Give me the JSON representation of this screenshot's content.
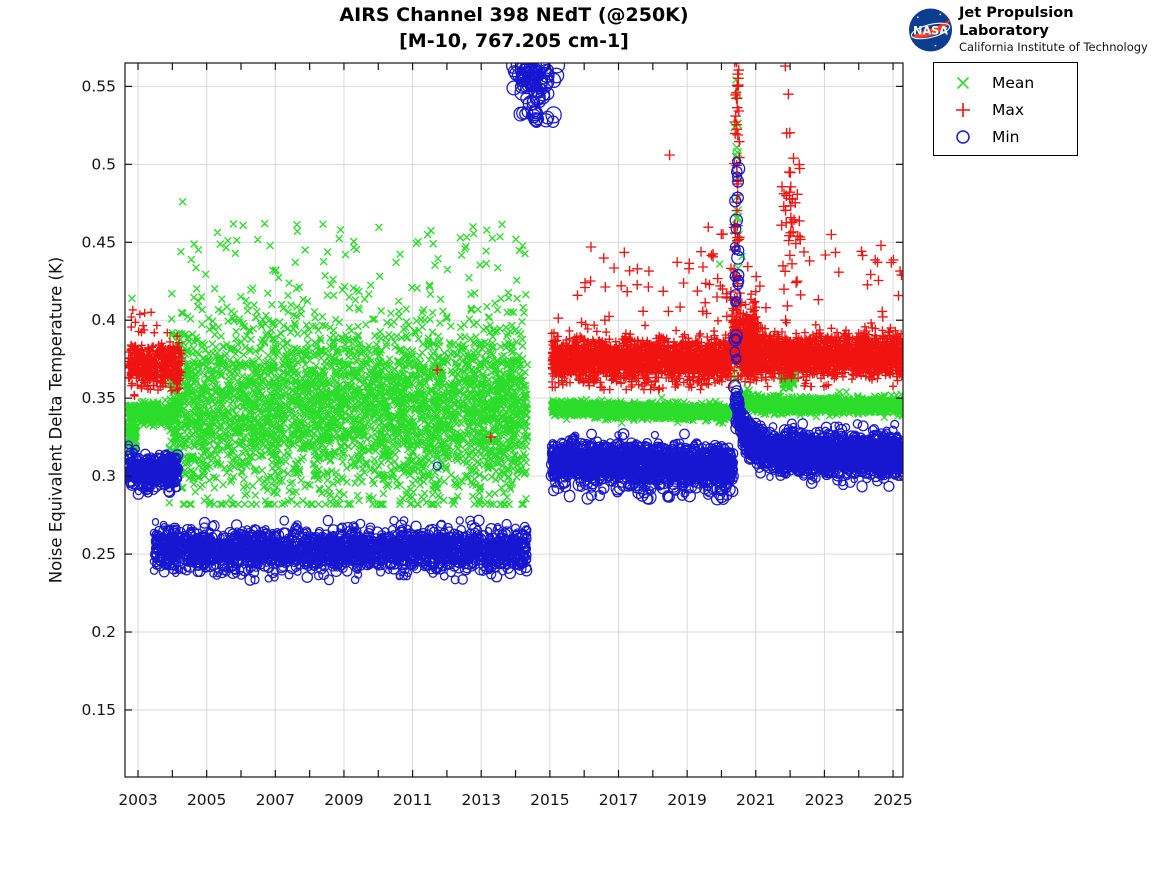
{
  "header": {
    "title_line1": "AIRS Channel 398 NEdT (@250K)",
    "title_line2": "[M-10, 767.205 cm-1]",
    "jpl_name": "Jet Propulsion Laboratory",
    "jpl_sub": "California Institute of Technology",
    "nasa_logo_text": "NASA"
  },
  "chart_data": {
    "type": "scatter",
    "title": "AIRS Channel 398 NEdT (@250K)",
    "subtitle": "[M-10, 767.205 cm-1]",
    "xlabel": "",
    "ylabel": "Noise Equivalent Delta Temperature (K)",
    "xlim": [
      2002.62,
      2025.29
    ],
    "ylim": [
      0.107,
      0.565
    ],
    "xticks": [
      2003,
      2005,
      2007,
      2009,
      2011,
      2013,
      2015,
      2017,
      2019,
      2021,
      2023,
      2025
    ],
    "xtick_minor_step": 1,
    "yticks": [
      0.15,
      0.2,
      0.25,
      0.3,
      0.35,
      0.4,
      0.45,
      0.5,
      0.55
    ],
    "ytick_labels": [
      "0.15",
      "0.2",
      "0.25",
      "0.3",
      "0.35",
      "0.4",
      "0.45",
      "0.5",
      "0.55"
    ],
    "grid": true,
    "legend_position": "outside-top-right",
    "colors": {
      "grid": "#d9d9d9",
      "axis": "#141414",
      "tick_label": "#151515"
    },
    "series": [
      {
        "name": "Mean",
        "marker": "x",
        "color": "#2bdc2b"
      },
      {
        "name": "Max",
        "marker": "+",
        "color": "#ef1410"
      },
      {
        "name": "Min",
        "marker": "o",
        "color": "#1717d2"
      }
    ],
    "description": "Daily mean/max/min noise equivalent delta temperature for AIRS channel 398 from late 2002 through 2025, with a data gap in 2014-2015, a calibration anomaly spike near 2020.4, and a high-noise Min cluster near 2014.5 at ~0.55 K.",
    "clusters": [
      {
        "series": "Mean",
        "label": "early-band-upper",
        "x": [
          2002.72,
          2004.2
        ],
        "n": 300,
        "y": {
          "type": "normal",
          "mu": 0.34,
          "sigma": 0.0035
        },
        "clip": [
          0.331,
          0.349
        ]
      },
      {
        "series": "Mean",
        "label": "early-band-lower",
        "x": [
          2002.7,
          2002.95
        ],
        "n": 90,
        "y": {
          "type": "uniform",
          "lo": 0.315,
          "hi": 0.334
        }
      },
      {
        "series": "Mean",
        "label": "era1-cloud",
        "x": [
          2003.9,
          2014.35
        ],
        "n": 3800,
        "y": {
          "type": "normal",
          "mu": 0.344,
          "sigma": 0.0295
        },
        "clip": [
          0.282,
          0.462
        ]
      },
      {
        "series": "Mean",
        "label": "era1-cloud-high",
        "x": [
          2004.1,
          2014.3
        ],
        "n": 60,
        "y": {
          "type": "uniform",
          "lo": 0.432,
          "hi": 0.462
        }
      },
      {
        "series": "Mean",
        "label": "era2-band-pre",
        "x": [
          2015.05,
          2020.42
        ],
        "n": 1500,
        "y": {
          "type": "normal",
          "mu": 0.3435,
          "mu2": 0.3405,
          "sigma": 0.0023
        },
        "clip": [
          0.334,
          0.352
        ]
      },
      {
        "series": "Mean",
        "label": "spike-column",
        "x": [
          2020.38,
          2020.5
        ],
        "n": 22,
        "y": {
          "type": "uniform",
          "lo": 0.357,
          "hi": 0.527
        },
        "size": 4.2
      },
      {
        "series": "Mean",
        "label": "era2-band-post",
        "x": [
          2020.45,
          2025.28
        ],
        "n": 1400,
        "y": {
          "type": "decay",
          "base": 0.3452,
          "amp": 0.0045,
          "tau": 0.5,
          "sigma": 0.0024
        },
        "clip": [
          0.336,
          0.356
        ]
      },
      {
        "series": "Mean",
        "label": "block-2022",
        "x": [
          2021.78,
          2022.12
        ],
        "n": 150,
        "y": {
          "type": "normal",
          "mu": 0.3645,
          "sigma": 0.0042
        },
        "clip": [
          0.3555,
          0.374
        ]
      },
      {
        "series": "Max",
        "label": "early-band",
        "x": [
          2002.72,
          2004.28
        ],
        "n": 420,
        "y": {
          "type": "normal",
          "mu": 0.3715,
          "sigma": 0.0072
        },
        "clip": [
          0.3505,
          0.392
        ]
      },
      {
        "series": "Max",
        "label": "early-outliers",
        "x": [
          2002.75,
          2003.55
        ],
        "n": 13,
        "y": {
          "type": "uniform",
          "lo": 0.391,
          "hi": 0.4085
        }
      },
      {
        "series": "Max",
        "label": "era2-band-pre",
        "x": [
          2015.05,
          2020.3
        ],
        "n": 1700,
        "y": {
          "type": "normal",
          "mu": 0.3745,
          "sigma": 0.0063
        },
        "clip": [
          0.357,
          0.398
        ]
      },
      {
        "series": "Max",
        "label": "era2-band-pre-tail",
        "x": [
          2015.05,
          2020.3
        ],
        "n": 130,
        "y": {
          "type": "normal",
          "mu": 0.3745,
          "sigma": 0.011
        },
        "clip": [
          0.3555,
          0.4075
        ]
      },
      {
        "series": "Max",
        "label": "era2-outliers",
        "x": [
          2015.2,
          2025.25
        ],
        "n": 55,
        "y": {
          "type": "uniform",
          "lo": 0.398,
          "hi": 0.445
        },
        "size": 5.0
      },
      {
        "series": "Max",
        "label": "pre-spike-ramp",
        "x": [
          2019.0,
          2020.35
        ],
        "n": 20,
        "y": {
          "type": "uniform",
          "lo": 0.402,
          "hi": 0.472
        },
        "size": 5.0
      },
      {
        "series": "Max",
        "label": "spike-column",
        "x": [
          2020.36,
          2020.53
        ],
        "n": 60,
        "y": {
          "type": "uniform",
          "lo": 0.385,
          "hi": 0.5705
        },
        "size": 5.3
      },
      {
        "series": "Max",
        "label": "spike-bulge",
        "x": [
          2020.3,
          2021.05
        ],
        "n": 330,
        "y": {
          "type": "normal",
          "mu": 0.3875,
          "sigma": 0.0115
        },
        "clip": [
          0.362,
          0.428
        ]
      },
      {
        "series": "Max",
        "label": "cluster-2022",
        "x": [
          2021.75,
          2022.3
        ],
        "n": 42,
        "y": {
          "type": "normal",
          "mu": 0.465,
          "sigma": 0.03
        },
        "clip": [
          0.4,
          0.525
        ],
        "size": 5.3
      },
      {
        "series": "Max",
        "label": "era2-band-post",
        "x": [
          2020.53,
          2025.28
        ],
        "n": 1800,
        "y": {
          "type": "normal",
          "mu": 0.3775,
          "sigma": 0.0066
        },
        "clip": [
          0.3575,
          0.4025
        ]
      },
      {
        "series": "Min",
        "label": "early-blob",
        "x": [
          2002.72,
          2004.15
        ],
        "n": 380,
        "y": {
          "type": "normal",
          "mu": 0.3035,
          "sigma": 0.0055
        },
        "clip": [
          0.287,
          0.32
        ]
      },
      {
        "series": "Min",
        "label": "era1-band",
        "x": [
          2003.45,
          2014.35
        ],
        "n": 2100,
        "y": {
          "type": "normal",
          "mu": 0.2525,
          "sigma": 0.0066
        },
        "clip": [
          0.2335,
          0.2715
        ]
      },
      {
        "series": "Min",
        "label": "cluster-2014-top",
        "x": [
          2013.95,
          2015.42
        ],
        "xtype": "normal",
        "xmu": 2014.55,
        "xsigma": 0.3,
        "n": 70,
        "y": {
          "type": "normal",
          "mu": 0.5572,
          "sigma": 0.0055
        },
        "clip": [
          0.543,
          0.5638
        ],
        "size": 6.2
      },
      {
        "series": "Min",
        "label": "cluster-2014-low",
        "x": [
          2013.98,
          2015.35
        ],
        "xtype": "normal",
        "xmu": 2014.55,
        "xsigma": 0.3,
        "n": 26,
        "y": {
          "type": "uniform",
          "lo": 0.5265,
          "hi": 0.5455
        },
        "size": 6.2
      },
      {
        "series": "Min",
        "label": "era2-band-pre",
        "x": [
          2015.05,
          2020.35
        ],
        "n": 1600,
        "y": {
          "type": "normal",
          "mu": 0.31,
          "mu2": 0.3055,
          "sigma": 0.0062
        },
        "clip": [
          0.2865,
          0.327
        ]
      },
      {
        "series": "Min",
        "label": "era2-pre-low-outliers",
        "x": [
          2015.1,
          2020.3
        ],
        "n": 55,
        "y": {
          "type": "uniform",
          "lo": 0.285,
          "hi": 0.2965
        },
        "size": 5.6
      },
      {
        "series": "Min",
        "label": "spike-column",
        "x": [
          2020.38,
          2020.52
        ],
        "n": 38,
        "y": {
          "type": "uniform",
          "lo": 0.329,
          "hi": 0.502
        },
        "size": 4.8
      },
      {
        "series": "Min",
        "label": "post-spike-decay",
        "x": [
          2020.45,
          2021.35
        ],
        "n": 380,
        "y": {
          "type": "decay",
          "base": 0.3165,
          "amp": 0.03,
          "tau": 0.22,
          "sigma": 0.0056
        },
        "clip": [
          0.298,
          0.362
        ]
      },
      {
        "series": "Min",
        "label": "era2-band-post",
        "x": [
          2021.35,
          2025.28
        ],
        "n": 1600,
        "y": {
          "type": "normal",
          "mu": 0.316,
          "mu2": 0.3125,
          "sigma": 0.0062
        },
        "clip": [
          0.2925,
          0.3335
        ]
      }
    ],
    "points": [
      {
        "series": "Mean",
        "xy": [
          [
            2002.82,
            0.414
          ],
          [
            2004.3,
            0.476
          ],
          [
            2020.42,
            0.554
          ],
          [
            2020.46,
            0.545
          ],
          [
            2020.52,
            0.455
          ],
          [
            2020.6,
            0.441
          ],
          [
            2019.95,
            0.436
          ]
        ]
      },
      {
        "series": "Max",
        "xy": [
          [
            2011.72,
            0.368
          ],
          [
            2013.28,
            0.325
          ],
          [
            2018.49,
            0.506
          ],
          [
            2020.42,
            0.568
          ],
          [
            2021.86,
            0.563
          ],
          [
            2021.95,
            0.545
          ],
          [
            2021.9,
            0.52
          ],
          [
            2023.2,
            0.455
          ],
          [
            2024.65,
            0.448
          ],
          [
            2024.95,
            0.437
          ],
          [
            2016.2,
            0.447
          ],
          [
            2017.55,
            0.433
          ]
        ],
        "size": 5.3
      },
      {
        "series": "Min",
        "xy": [
          [
            2011.72,
            0.3065
          ]
        ]
      }
    ]
  },
  "legend": {
    "items": [
      "Mean",
      "Max",
      "Min"
    ]
  }
}
